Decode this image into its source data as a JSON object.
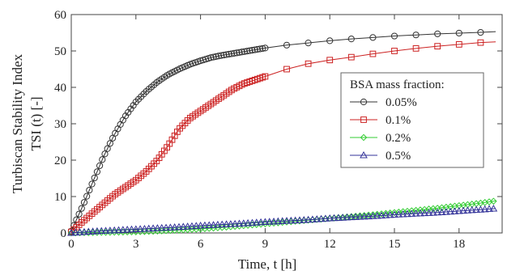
{
  "chart_data": {
    "type": "line",
    "title": "",
    "xlabel": "Time, t [h]",
    "ylabel_line1": "Turbiscan Stability Index",
    "ylabel_line2": "TSI (t) [-]",
    "xlim": [
      0,
      20
    ],
    "ylim": [
      0,
      60
    ],
    "xticks": [
      0,
      3,
      6,
      9,
      12,
      15,
      18
    ],
    "yticks": [
      0,
      10,
      20,
      30,
      40,
      50,
      60
    ],
    "grid": false,
    "legend": {
      "title": "BSA mass fraction:",
      "placement": "right-middle"
    },
    "series": [
      {
        "name": "0.05%",
        "color": "#333333",
        "marker": "circle",
        "x": [
          0,
          0.5,
          1,
          1.5,
          2,
          2.5,
          3,
          3.5,
          4,
          4.5,
          5,
          5.5,
          6,
          6.5,
          7,
          7.5,
          8,
          9,
          10,
          11,
          12,
          13,
          14,
          15,
          16,
          17,
          18,
          19,
          19.7
        ],
        "y": [
          0.5,
          7,
          14,
          21,
          27,
          32,
          36,
          39,
          41.5,
          43.5,
          45,
          46.3,
          47.3,
          48.2,
          48.8,
          49.3,
          49.8,
          50.8,
          51.6,
          52.2,
          52.8,
          53.3,
          53.7,
          54.1,
          54.4,
          54.7,
          54.9,
          55.1,
          55.3
        ]
      },
      {
        "name": "0.1%",
        "color": "#cc2222",
        "marker": "square",
        "x": [
          0,
          0.5,
          1,
          1.5,
          2,
          2.5,
          3,
          3.5,
          4,
          4.5,
          5,
          5.5,
          6,
          6.5,
          7,
          7.5,
          8,
          8.5,
          9,
          10,
          11,
          12,
          13,
          14,
          15,
          16,
          17,
          18,
          19,
          19.7
        ],
        "y": [
          0.3,
          3,
          5.5,
          8,
          10.5,
          12.5,
          14.5,
          17,
          20,
          24,
          28.5,
          31.5,
          33.5,
          35.5,
          37.5,
          39.5,
          41,
          42,
          43,
          45,
          46.5,
          47.5,
          48.3,
          49.2,
          50,
          50.7,
          51.3,
          51.8,
          52.3,
          52.5
        ]
      },
      {
        "name": "0.2%",
        "color": "#33cc33",
        "marker": "diamond",
        "x": [
          0,
          1,
          2,
          3,
          4,
          5,
          6,
          7,
          8,
          9,
          10,
          11,
          12,
          13,
          14,
          15,
          16,
          17,
          18,
          19,
          19.7
        ],
        "y": [
          0,
          0.1,
          0.2,
          0.3,
          0.5,
          0.8,
          1.1,
          1.5,
          2,
          2.5,
          3,
          3.5,
          4,
          4.5,
          5,
          5.6,
          6.2,
          6.8,
          7.5,
          8.2,
          8.8
        ]
      },
      {
        "name": "0.5%",
        "color": "#333399",
        "marker": "triangle",
        "x": [
          0,
          1,
          2,
          3,
          4,
          5,
          6,
          7,
          8,
          9,
          10,
          11,
          12,
          13,
          14,
          15,
          16,
          17,
          18,
          19,
          19.7
        ],
        "y": [
          0,
          0.4,
          0.7,
          1,
          1.3,
          1.6,
          2,
          2.3,
          2.6,
          3,
          3.3,
          3.6,
          4,
          4.3,
          4.6,
          5,
          5.3,
          5.6,
          6,
          6.4,
          6.7
        ]
      }
    ]
  }
}
